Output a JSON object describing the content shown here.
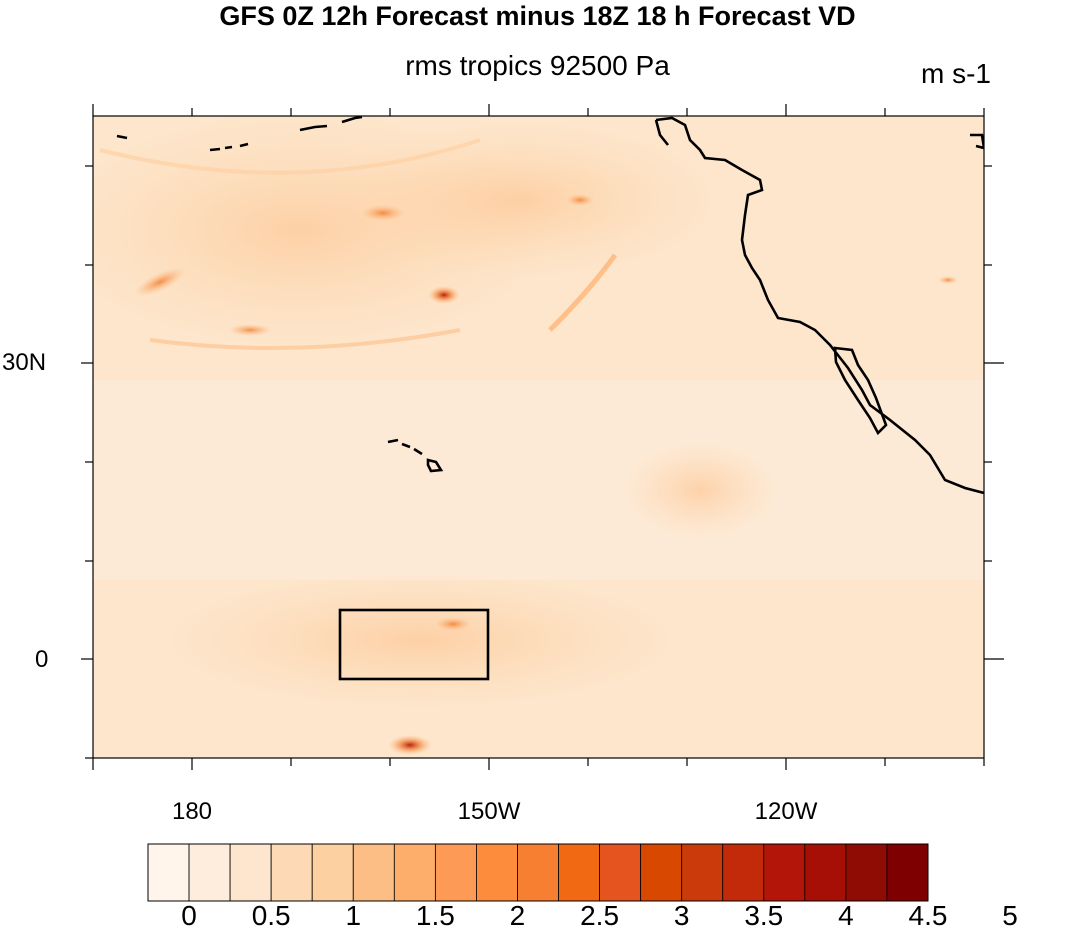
{
  "title": "GFS 0Z 12h Forecast minus 18Z 18 h Forecast VD",
  "subtitle": "rms tropics 92500 Pa",
  "units": "m s-1",
  "lat_labels": [
    "30N",
    "0"
  ],
  "lon_labels": [
    "180",
    "150W",
    "120W"
  ],
  "colorbar": {
    "labels": [
      "0",
      "0.5",
      "1",
      "1.5",
      "2",
      "2.5",
      "3",
      "3.5",
      "4",
      "4.5",
      "5"
    ],
    "colors": [
      "#fff5eb",
      "#feeddc",
      "#fee6ce",
      "#fddab5",
      "#fdd0a2",
      "#fdbe85",
      "#fdae6b",
      "#fd9a55",
      "#fd8d3c",
      "#f67f32",
      "#f16913",
      "#e5531f",
      "#d94801",
      "#cb3a0b",
      "#c22a0a",
      "#b31608",
      "#a60f06",
      "#8f0c04",
      "#7f0000"
    ]
  },
  "colors": {
    "background_field": "#fde6cc",
    "coast": "#000000"
  }
}
